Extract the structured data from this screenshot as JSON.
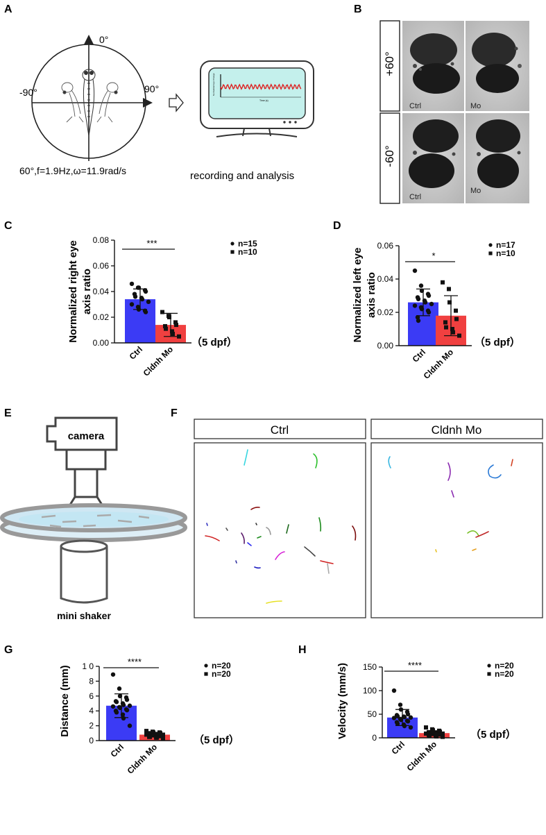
{
  "panels": {
    "A": {
      "letter": "A",
      "angle_top": "0°",
      "angle_left": "-90°",
      "angle_right": "90°",
      "stimulus": "60°,f=1.9Hz,ω=11.9rad/s",
      "monitor_ylabel": "Normalized Eye Change",
      "monitor_xlabel": "Time (s)",
      "caption": "recording and analysis"
    },
    "B": {
      "letter": "B",
      "rows": [
        {
          "label": "+60°",
          "left": "Ctrl",
          "right": "Mo"
        },
        {
          "label": "-60°",
          "left": "Ctrl",
          "right": "Mo"
        }
      ]
    },
    "E": {
      "letter": "E",
      "camera_label": "camera",
      "shaker_label": "mini shaker"
    },
    "F": {
      "letter": "F",
      "left_title": "Ctrl",
      "right_title": "Cldnh Mo"
    }
  },
  "chart_data": [
    {
      "panel": "C",
      "type": "bar",
      "ylabel_lines": [
        "Normalized right  eye",
        "axis ratio"
      ],
      "ylim": [
        0,
        0.08
      ],
      "yticks": [
        0.0,
        0.02,
        0.04,
        0.06,
        0.08
      ],
      "ytick_labels": [
        "0.00",
        "0.02",
        "0.04",
        "0.06",
        "0.08"
      ],
      "categories": [
        "Ctrl",
        "Cldnh Mo"
      ],
      "values": [
        0.034,
        0.014
      ],
      "sd": [
        0.008,
        0.009
      ],
      "colors": [
        "#3b3bf5",
        "#f04040"
      ],
      "points": [
        [
          0.046,
          0.043,
          0.043,
          0.041,
          0.04,
          0.038,
          0.036,
          0.035,
          0.034,
          0.032,
          0.03,
          0.028,
          0.026,
          0.025,
          0.024
        ],
        [
          0.024,
          0.021,
          0.02,
          0.016,
          0.014,
          0.013,
          0.011,
          0.009,
          0.007,
          0.005
        ]
      ],
      "markers": [
        "circle",
        "square"
      ],
      "significance": "***",
      "legend": [
        "n=15",
        "n=10"
      ],
      "annotation": "（5 dpf）"
    },
    {
      "panel": "D",
      "type": "bar",
      "ylabel_lines": [
        "Normalized left eye",
        "axis ratio"
      ],
      "ylim": [
        0,
        0.06
      ],
      "yticks": [
        0.0,
        0.02,
        0.04,
        0.06
      ],
      "ytick_labels": [
        "0.00",
        "0.02",
        "0.04",
        "0.06"
      ],
      "categories": [
        "Ctrl",
        "Cldnh Mo"
      ],
      "values": [
        0.026,
        0.018
      ],
      "sd": [
        0.008,
        0.012
      ],
      "colors": [
        "#3b3bf5",
        "#f04040"
      ],
      "points": [
        [
          0.045,
          0.036,
          0.033,
          0.031,
          0.03,
          0.029,
          0.028,
          0.027,
          0.026,
          0.025,
          0.024,
          0.023,
          0.022,
          0.021,
          0.02,
          0.017,
          0.015
        ],
        [
          0.038,
          0.034,
          0.026,
          0.021,
          0.016,
          0.014,
          0.011,
          0.01,
          0.008,
          0.006
        ]
      ],
      "markers": [
        "circle",
        "square"
      ],
      "significance": "*",
      "legend": [
        "n=17",
        "n=10"
      ],
      "annotation": "（5 dpf）"
    },
    {
      "panel": "G",
      "type": "bar",
      "ylabel_lines": [
        "Distance (mm)"
      ],
      "ylim": [
        0,
        10
      ],
      "yticks": [
        0,
        2,
        4,
        6,
        8,
        10
      ],
      "ytick_labels": [
        "0",
        "2",
        "4",
        "6",
        "8",
        "1 0"
      ],
      "categories": [
        "Ctrl",
        "Cldnh Mo"
      ],
      "values": [
        4.7,
        0.8
      ],
      "sd": [
        1.6,
        0.3
      ],
      "colors": [
        "#3b3bf5",
        "#f04040"
      ],
      "points": [
        [
          8.9,
          7.0,
          6.0,
          5.8,
          5.5,
          5.3,
          5.2,
          5.0,
          4.8,
          4.7,
          4.6,
          4.5,
          4.4,
          4.2,
          4.1,
          4.0,
          3.8,
          3.5,
          3.0,
          2.0
        ],
        [
          1.3,
          1.2,
          1.1,
          1.1,
          1.0,
          1.0,
          0.9,
          0.9,
          0.8,
          0.8,
          0.8,
          0.7,
          0.7,
          0.6,
          0.6,
          0.5,
          0.5,
          0.4,
          0.4,
          0.3
        ]
      ],
      "markers": [
        "circle",
        "square"
      ],
      "significance": "****",
      "legend": [
        "n=20",
        "n=20"
      ],
      "annotation": "（5 dpf）"
    },
    {
      "panel": "H",
      "type": "bar",
      "ylabel_lines": [
        "Velocity (mm/s)"
      ],
      "ylim": [
        0,
        150
      ],
      "yticks": [
        0,
        50,
        100,
        150
      ],
      "ytick_labels": [
        "0",
        "50",
        "100",
        "150"
      ],
      "categories": [
        "Ctrl",
        "Cldnh Mo"
      ],
      "values": [
        43,
        10
      ],
      "sd": [
        17,
        5
      ],
      "colors": [
        "#3b3bf5",
        "#f04040"
      ],
      "points": [
        [
          100,
          70,
          60,
          55,
          50,
          48,
          46,
          45,
          44,
          43,
          42,
          40,
          38,
          36,
          35,
          33,
          30,
          28,
          25,
          22
        ],
        [
          22,
          18,
          16,
          15,
          13,
          12,
          11,
          10,
          10,
          9,
          9,
          8,
          8,
          7,
          7,
          6,
          5,
          4,
          3,
          2
        ]
      ],
      "markers": [
        "circle",
        "square"
      ],
      "significance": "****",
      "legend": [
        "n=20",
        "n=20"
      ],
      "annotation": "（5 dpf）"
    }
  ]
}
